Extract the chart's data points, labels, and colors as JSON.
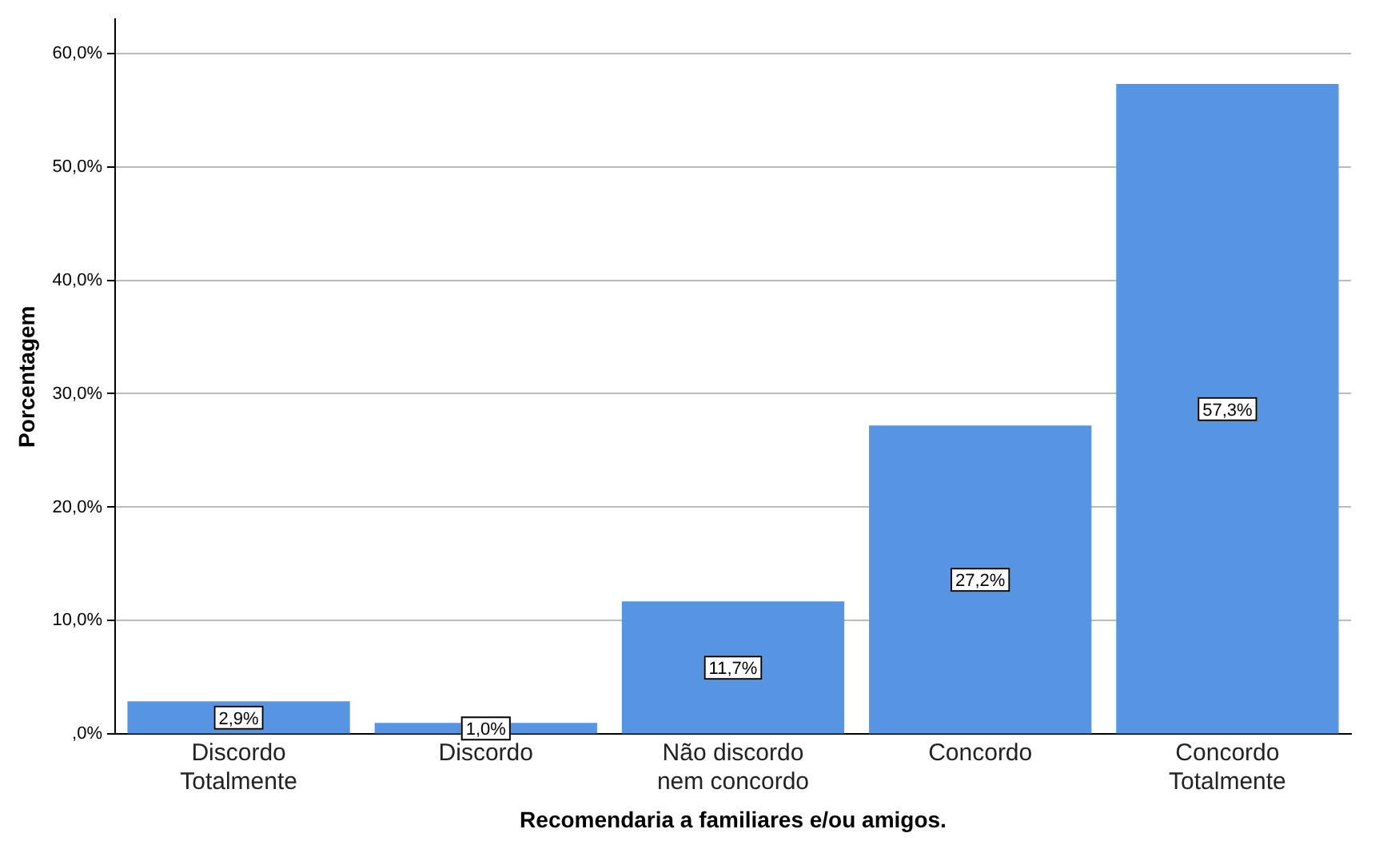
{
  "chart_data": {
    "type": "bar",
    "xlabel": "Recomendaria a familiares e/ou amigos.",
    "ylabel": "Porcentagem",
    "categories": [
      "Discordo\nTotalmente",
      "Discordo",
      "Não discordo\nnem concordo",
      "Concordo",
      "Concordo\nTotalmente"
    ],
    "values": [
      2.9,
      1.0,
      11.7,
      27.2,
      57.3
    ],
    "value_labels": [
      "2,9%",
      "1,0%",
      "11,7%",
      "27,2%",
      "57,3%"
    ],
    "color": "#5595e3",
    "ylim": [
      0,
      63
    ],
    "yticks": [
      {
        "value": 0,
        "label": ",0%"
      },
      {
        "value": 10,
        "label": "10,0%"
      },
      {
        "value": 20,
        "label": "20,0%"
      },
      {
        "value": 30,
        "label": "30,0%"
      },
      {
        "value": 40,
        "label": "40,0%"
      },
      {
        "value": 50,
        "label": "50,0%"
      },
      {
        "value": 60,
        "label": "60,0%"
      }
    ],
    "grid": "y",
    "legend": false
  }
}
